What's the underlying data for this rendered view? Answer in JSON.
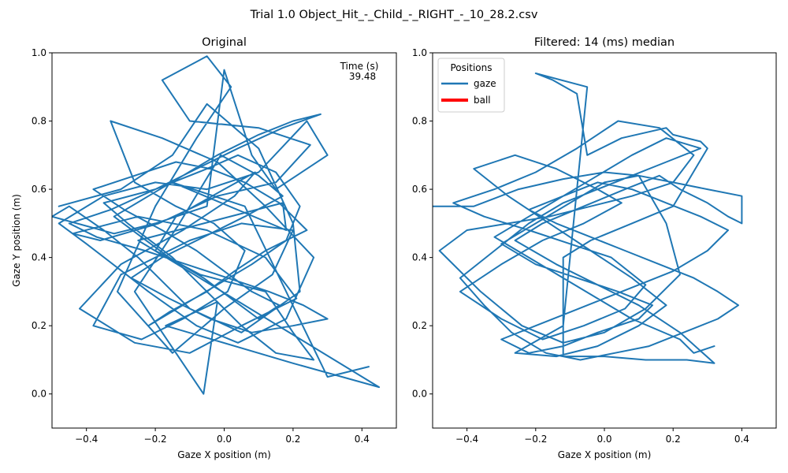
{
  "figure": {
    "suptitle": "Trial 1.0 Object_Hit_-_Child_-_RIGHT_-_10_28.2.csv"
  },
  "colors": {
    "gaze": "#1f77b4",
    "ball": "#ff0000",
    "frame": "#000000"
  },
  "chart_data": [
    {
      "type": "line",
      "title": "Original",
      "xlabel": "Gaze X position (m)",
      "ylabel": "Gaze Y position (m)",
      "xlim": [
        -0.5,
        0.5
      ],
      "ylim": [
        -0.1,
        1.0
      ],
      "xticks": [
        "-0.4",
        "-0.2",
        "0.0",
        "0.2",
        "0.4"
      ],
      "yticks": [
        "0.0",
        "0.2",
        "0.4",
        "0.6",
        "0.8",
        "1.0"
      ],
      "grid": false,
      "annotation": {
        "label": "Time (s)",
        "value": "39.48"
      },
      "series": [
        {
          "name": "gaze",
          "x": [
            -0.48,
            -0.3,
            -0.15,
            -0.05,
            0.1,
            0.2,
            0.22,
            0.05,
            -0.1,
            -0.25,
            -0.35,
            -0.45,
            -0.5,
            -0.32,
            -0.2,
            -0.05,
            0.0,
            0.08,
            0.15,
            0.3,
            0.24,
            0.1,
            -0.05,
            -0.2,
            -0.35,
            -0.48,
            -0.4,
            -0.22,
            -0.08,
            0.04,
            0.18,
            0.26,
            0.12,
            -0.02,
            -0.18,
            -0.33,
            -0.26,
            -0.14,
            -0.03,
            0.06,
            0.01,
            -0.12,
            -0.24,
            -0.38,
            -0.3,
            -0.1,
            0.05,
            0.2,
            0.14,
            0.0,
            -0.15,
            -0.31,
            -0.2,
            -0.08,
            0.02,
            -0.05,
            -0.18,
            -0.1,
            0.1,
            0.25,
            0.15,
            -0.02,
            -0.19,
            -0.36,
            -0.44,
            -0.25,
            -0.05,
            0.12,
            0.21,
            0.05,
            -0.1,
            -0.26,
            -0.42,
            -0.3,
            -0.12,
            0.03,
            0.09,
            0.0,
            -0.14,
            -0.2,
            -0.07,
            0.12,
            0.2,
            0.26,
            0.15,
            0.05,
            -0.05,
            -0.15,
            -0.28,
            -0.35,
            -0.2,
            -0.05,
            0.04,
            0.15,
            0.22,
            0.18,
            0.08,
            -0.02,
            -0.12,
            -0.22,
            -0.16,
            -0.05,
            0.03,
            0.12,
            0.24,
            0.16,
            0.06,
            -0.04,
            -0.14,
            -0.26,
            -0.38,
            -0.29,
            -0.18,
            -0.08,
            0.0,
            0.08,
            0.16,
            0.1,
            0.02,
            -0.06,
            -0.16,
            -0.24,
            -0.32,
            -0.22,
            -0.12,
            -0.02,
            0.1,
            0.2,
            0.28,
            0.17,
            0.04,
            -0.08,
            -0.2,
            -0.33,
            -0.45,
            -0.37,
            -0.23,
            -0.11,
            0.01,
            0.13,
            0.23,
            0.3,
            0.2,
            0.08,
            -0.04,
            -0.16,
            -0.27,
            -0.18,
            -0.06,
            0.06,
            0.17,
            0.1,
            -0.01,
            -0.13,
            -0.26,
            -0.06,
            -0.02,
            -0.17,
            0.2,
            0.45,
            -0.25,
            0.17,
            0.18,
            -0.15,
            0.06,
            0.3,
            0.42
          ],
          "y": [
            0.55,
            0.6,
            0.7,
            0.85,
            0.72,
            0.5,
            0.3,
            0.18,
            0.25,
            0.4,
            0.48,
            0.55,
            0.52,
            0.47,
            0.5,
            0.55,
            0.95,
            0.7,
            0.6,
            0.7,
            0.8,
            0.65,
            0.6,
            0.62,
            0.58,
            0.5,
            0.44,
            0.3,
            0.2,
            0.15,
            0.22,
            0.4,
            0.55,
            0.68,
            0.75,
            0.8,
            0.62,
            0.55,
            0.5,
            0.42,
            0.3,
            0.22,
            0.16,
            0.2,
            0.35,
            0.45,
            0.5,
            0.48,
            0.35,
            0.25,
            0.12,
            0.3,
            0.55,
            0.75,
            0.9,
            0.99,
            0.92,
            0.8,
            0.78,
            0.73,
            0.62,
            0.58,
            0.5,
            0.45,
            0.47,
            0.52,
            0.48,
            0.4,
            0.28,
            0.2,
            0.12,
            0.15,
            0.25,
            0.38,
            0.48,
            0.58,
            0.65,
            0.6,
            0.52,
            0.42,
            0.35,
            0.3,
            0.18,
            0.1,
            0.12,
            0.2,
            0.3,
            0.4,
            0.5,
            0.56,
            0.6,
            0.66,
            0.7,
            0.65,
            0.55,
            0.45,
            0.38,
            0.32,
            0.26,
            0.2,
            0.24,
            0.3,
            0.36,
            0.42,
            0.48,
            0.56,
            0.62,
            0.66,
            0.68,
            0.64,
            0.6,
            0.54,
            0.48,
            0.42,
            0.36,
            0.3,
            0.26,
            0.22,
            0.28,
            0.34,
            0.4,
            0.46,
            0.52,
            0.58,
            0.64,
            0.7,
            0.76,
            0.8,
            0.82,
            0.78,
            0.72,
            0.66,
            0.6,
            0.54,
            0.5,
            0.46,
            0.42,
            0.38,
            0.34,
            0.3,
            0.26,
            0.22,
            0.2,
            0.18,
            0.22,
            0.28,
            0.34,
            0.4,
            0.46,
            0.52,
            0.58,
            0.64,
            0.7,
            0.5,
            0.3,
            0.0,
            0.27,
            0.2,
            0.09,
            0.02,
            0.45,
            0.56,
            0.48,
            0.62,
            0.55,
            0.05,
            0.08
          ],
          "color": "#1f77b4"
        }
      ]
    },
    {
      "type": "line",
      "title": "Filtered: 14 (ms) median",
      "xlabel": "Gaze X position (m)",
      "ylabel": "",
      "xlim": [
        -0.5,
        0.5
      ],
      "ylim": [
        -0.1,
        1.0
      ],
      "xticks": [
        "-0.4",
        "-0.2",
        "0.0",
        "0.2",
        "0.4"
      ],
      "yticks": [
        "0.0",
        "0.2",
        "0.4",
        "0.6",
        "0.8",
        "1.0"
      ],
      "grid": false,
      "legend": {
        "title": "Positions",
        "placement": "upper-left",
        "entries": [
          {
            "label": "gaze",
            "color": "#1f77b4"
          },
          {
            "label": "ball",
            "color": "#ff0000"
          }
        ]
      },
      "series": [
        {
          "name": "gaze",
          "x": [
            -0.5,
            -0.38,
            -0.25,
            -0.12,
            0.0,
            0.1,
            0.18,
            0.22,
            0.12,
            0.0,
            -0.12,
            -0.24,
            -0.36,
            -0.48,
            -0.4,
            -0.28,
            -0.16,
            -0.04,
            0.08,
            0.2,
            0.26,
            0.16,
            0.04,
            -0.08,
            -0.2,
            -0.32,
            -0.44,
            -0.35,
            -0.22,
            -0.1,
            0.02,
            0.12,
            0.06,
            -0.06,
            -0.18,
            -0.3,
            -0.42,
            -0.3,
            -0.18,
            -0.06,
            0.05,
            -0.02,
            -0.14,
            -0.26,
            -0.38,
            -0.28,
            -0.16,
            -0.04,
            0.08,
            0.18,
            0.1,
            -0.02,
            -0.14,
            -0.26,
            -0.12,
            -0.05,
            -0.2,
            -0.15,
            -0.08,
            -0.05,
            0.05,
            0.18,
            0.2,
            0.28,
            0.3,
            0.2,
            0.08,
            -0.04,
            -0.12,
            -0.12,
            0.0,
            0.12,
            0.24,
            0.32,
            0.22,
            0.1,
            -0.02,
            -0.14,
            -0.26,
            -0.18,
            -0.06,
            0.06,
            0.16,
            0.22,
            0.3,
            0.36,
            0.4,
            0.4,
            0.3,
            0.2,
            0.1,
            0.0,
            -0.1,
            -0.2,
            -0.3,
            -0.2,
            -0.08,
            0.04,
            0.14,
            0.1,
            -0.02,
            -0.12,
            -0.22,
            -0.3,
            -0.2,
            -0.1,
            0.0,
            0.1,
            0.2,
            0.3,
            0.36,
            0.28,
            0.18,
            0.08,
            -0.02,
            -0.12,
            -0.22,
            -0.14,
            -0.04,
            0.06,
            0.16,
            0.26,
            0.33,
            0.39,
            0.33,
            0.23,
            0.13,
            0.03,
            -0.07,
            -0.17,
            -0.27,
            -0.35,
            -0.42,
            -0.32,
            -0.22,
            -0.12,
            -0.02,
            0.08,
            0.18,
            0.28,
            0.18,
            0.08,
            -0.02,
            -0.12,
            -0.22,
            -0.32,
            -0.22,
            -0.12,
            -0.02,
            0.08,
            0.22,
            0.26,
            0.32
          ],
          "y": [
            0.55,
            0.55,
            0.6,
            0.63,
            0.65,
            0.64,
            0.5,
            0.35,
            0.25,
            0.18,
            0.15,
            0.2,
            0.3,
            0.42,
            0.48,
            0.5,
            0.52,
            0.55,
            0.58,
            0.62,
            0.7,
            0.78,
            0.8,
            0.72,
            0.65,
            0.6,
            0.56,
            0.52,
            0.48,
            0.44,
            0.4,
            0.32,
            0.25,
            0.2,
            0.16,
            0.22,
            0.3,
            0.38,
            0.45,
            0.5,
            0.56,
            0.6,
            0.66,
            0.7,
            0.66,
            0.58,
            0.5,
            0.42,
            0.34,
            0.26,
            0.2,
            0.14,
            0.11,
            0.12,
            0.2,
            0.9,
            0.94,
            0.92,
            0.88,
            0.7,
            0.75,
            0.78,
            0.76,
            0.74,
            0.72,
            0.55,
            0.5,
            0.45,
            0.4,
            0.11,
            0.11,
            0.1,
            0.1,
            0.09,
            0.18,
            0.26,
            0.32,
            0.38,
            0.45,
            0.5,
            0.55,
            0.6,
            0.64,
            0.6,
            0.56,
            0.52,
            0.5,
            0.58,
            0.6,
            0.62,
            0.64,
            0.62,
            0.56,
            0.5,
            0.44,
            0.38,
            0.34,
            0.3,
            0.26,
            0.22,
            0.18,
            0.14,
            0.12,
            0.16,
            0.2,
            0.24,
            0.28,
            0.32,
            0.36,
            0.42,
            0.48,
            0.52,
            0.56,
            0.6,
            0.62,
            0.58,
            0.54,
            0.5,
            0.46,
            0.42,
            0.38,
            0.34,
            0.3,
            0.26,
            0.22,
            0.18,
            0.14,
            0.12,
            0.1,
            0.12,
            0.18,
            0.26,
            0.34,
            0.42,
            0.5,
            0.56,
            0.6,
            0.64,
            0.68,
            0.72,
            0.75,
            0.7,
            0.64,
            0.58,
            0.52,
            0.46,
            0.4,
            0.34,
            0.28,
            0.22,
            0.16,
            0.12,
            0.14
          ],
          "color": "#1f77b4"
        },
        {
          "name": "ball",
          "x": [],
          "y": [],
          "color": "#ff0000"
        }
      ]
    }
  ]
}
